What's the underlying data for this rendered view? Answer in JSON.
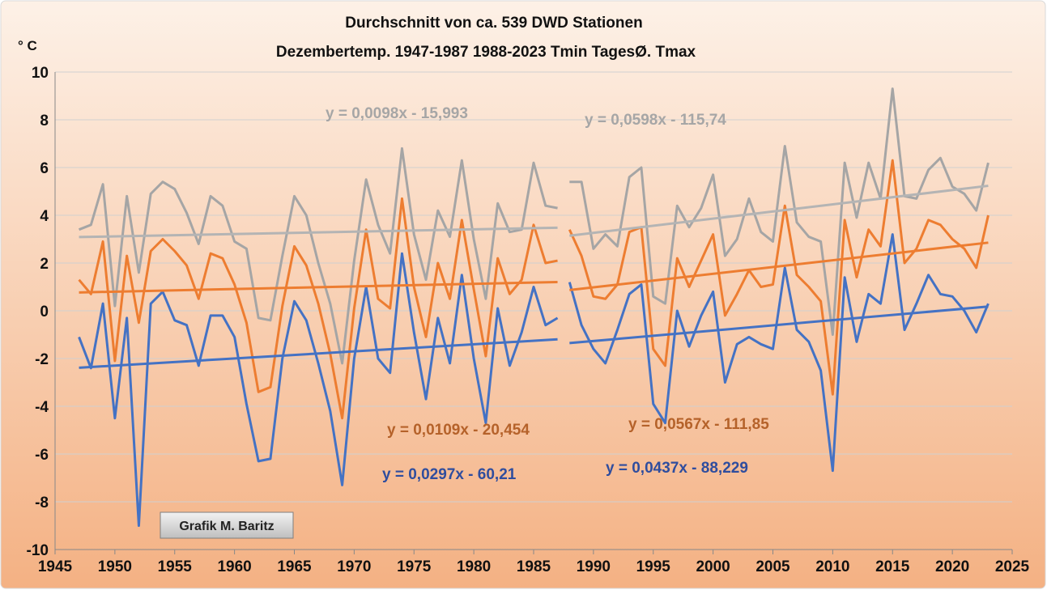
{
  "chart_data": {
    "type": "line",
    "title": [
      "Durchschnitt von ca. 539 DWD Stationen",
      "Dezembertemp. 1947-1987 1988-2023  Tmin TagesØ. Tmax"
    ],
    "y_label": "° C",
    "credit": "Grafik M. Baritz",
    "xlim": [
      1945,
      2025
    ],
    "xticks": [
      1945,
      1950,
      1955,
      1960,
      1965,
      1970,
      1975,
      1980,
      1985,
      1990,
      1995,
      2000,
      2005,
      2010,
      2015,
      2020,
      2025
    ],
    "ylim": [
      -10,
      10
    ],
    "yticks": [
      -10,
      -8,
      -6,
      -4,
      -2,
      0,
      2,
      4,
      6,
      8,
      10
    ],
    "grid": true,
    "periods": [
      {
        "x": [
          1947,
          1948,
          1949,
          1950,
          1951,
          1952,
          1953,
          1954,
          1955,
          1956,
          1957,
          1958,
          1959,
          1960,
          1961,
          1962,
          1963,
          1964,
          1965,
          1966,
          1967,
          1968,
          1969,
          1970,
          1971,
          1972,
          1973,
          1974,
          1975,
          1976,
          1977,
          1978,
          1979,
          1980,
          1981,
          1982,
          1983,
          1984,
          1985,
          1986,
          1987
        ],
        "series": [
          {
            "color": "#a5a5a5",
            "values": [
              3.4,
              3.6,
              5.3,
              0.2,
              4.8,
              1.6,
              4.9,
              5.4,
              5.1,
              4.1,
              2.8,
              4.8,
              4.4,
              2.9,
              2.6,
              -0.3,
              -0.4,
              2.3,
              4.8,
              4.0,
              2.0,
              0.3,
              -2.2,
              2.1,
              5.5,
              3.6,
              2.4,
              6.8,
              3.2,
              1.3,
              4.2,
              3.1,
              6.3,
              3.0,
              0.5,
              4.5,
              3.3,
              3.4,
              6.2,
              4.4,
              4.3
            ],
            "trend": {
              "label": "y = 0,0098x - 15,993",
              "slope": 0.0098,
              "intercept": -15.993,
              "color": "#b4b4b4",
              "label_color": "#a6a6a6"
            }
          },
          {
            "color": "#ed7d31",
            "values": [
              1.3,
              0.7,
              2.9,
              -2.1,
              2.3,
              -0.5,
              2.5,
              3.0,
              2.5,
              1.9,
              0.5,
              2.4,
              2.2,
              1.1,
              -0.5,
              -3.4,
              -3.2,
              0.2,
              2.7,
              1.9,
              0.3,
              -1.8,
              -4.5,
              0.1,
              3.4,
              0.5,
              0.1,
              4.7,
              1.0,
              -1.1,
              2.0,
              0.5,
              3.8,
              0.9,
              -1.9,
              2.2,
              0.7,
              1.3,
              3.6,
              2.0,
              2.1
            ],
            "trend": {
              "label": "y = 0,0109x - 20,454",
              "slope": 0.0109,
              "intercept": -20.454,
              "color": "#ed7d31",
              "label_color": "#b5622a"
            }
          },
          {
            "color": "#4472c4",
            "values": [
              -1.1,
              -2.4,
              0.3,
              -4.5,
              -0.3,
              -9.0,
              0.3,
              0.8,
              -0.4,
              -0.6,
              -2.3,
              -0.2,
              -0.2,
              -1.1,
              -3.9,
              -6.3,
              -6.2,
              -2.0,
              0.4,
              -0.4,
              -2.2,
              -4.2,
              -7.3,
              -2.0,
              1.0,
              -2.0,
              -2.6,
              2.4,
              -0.9,
              -3.7,
              -0.3,
              -2.2,
              1.5,
              -2.0,
              -4.7,
              0.1,
              -2.3,
              -0.9,
              1.0,
              -0.6,
              -0.3
            ],
            "trend": {
              "label": "y = 0,0297x - 60,21",
              "slope": 0.0297,
              "intercept": -60.21,
              "color": "#4472c4",
              "label_color": "#2f4d9e"
            }
          }
        ]
      },
      {
        "x": [
          1988,
          1989,
          1990,
          1991,
          1992,
          1993,
          1994,
          1995,
          1996,
          1997,
          1998,
          1999,
          2000,
          2001,
          2002,
          2003,
          2004,
          2005,
          2006,
          2007,
          2008,
          2009,
          2010,
          2011,
          2012,
          2013,
          2014,
          2015,
          2016,
          2017,
          2018,
          2019,
          2020,
          2021,
          2022,
          2023
        ],
        "series": [
          {
            "color": "#a5a5a5",
            "values": [
              5.4,
              5.4,
              2.6,
              3.2,
              2.7,
              5.6,
              6.0,
              0.6,
              0.3,
              4.4,
              3.5,
              4.3,
              5.7,
              2.3,
              3.0,
              4.7,
              3.3,
              2.9,
              6.9,
              3.7,
              3.1,
              2.9,
              -1.0,
              6.2,
              3.9,
              6.2,
              4.7,
              9.3,
              4.8,
              4.7,
              5.9,
              6.4,
              5.2,
              4.9,
              4.2,
              6.2
            ],
            "trend": {
              "label": "y = 0,0598x - 115,74",
              "slope": 0.0598,
              "intercept": -115.74,
              "color": "#b4b4b4",
              "label_color": "#a6a6a6"
            }
          },
          {
            "color": "#ed7d31",
            "values": [
              3.4,
              2.3,
              0.6,
              0.5,
              1.1,
              3.3,
              3.5,
              -1.6,
              -2.3,
              2.2,
              1.0,
              2.1,
              3.2,
              -0.2,
              0.7,
              1.7,
              1.0,
              1.1,
              4.4,
              1.5,
              1.0,
              0.4,
              -3.5,
              3.8,
              1.4,
              3.4,
              2.7,
              6.3,
              2.0,
              2.6,
              3.8,
              3.6,
              3.0,
              2.6,
              1.8,
              4.0
            ],
            "trend": {
              "label": "y = 0,0567x - 111,85",
              "slope": 0.0567,
              "intercept": -111.85,
              "color": "#ed7d31",
              "label_color": "#b5622a"
            }
          },
          {
            "color": "#4472c4",
            "values": [
              1.2,
              -0.6,
              -1.6,
              -2.2,
              -0.8,
              0.7,
              1.1,
              -3.9,
              -4.7,
              0.0,
              -1.5,
              -0.2,
              0.8,
              -3.0,
              -1.4,
              -1.1,
              -1.4,
              -1.6,
              1.8,
              -0.8,
              -1.3,
              -2.5,
              -6.7,
              1.4,
              -1.3,
              0.7,
              0.3,
              3.2,
              -0.8,
              0.3,
              1.5,
              0.7,
              0.6,
              0.0,
              -0.9,
              0.3
            ],
            "trend": {
              "label": "y = 0,0437x - 88,229",
              "slope": 0.0437,
              "intercept": -88.229,
              "color": "#4472c4",
              "label_color": "#2f4d9e"
            }
          }
        ]
      }
    ]
  }
}
